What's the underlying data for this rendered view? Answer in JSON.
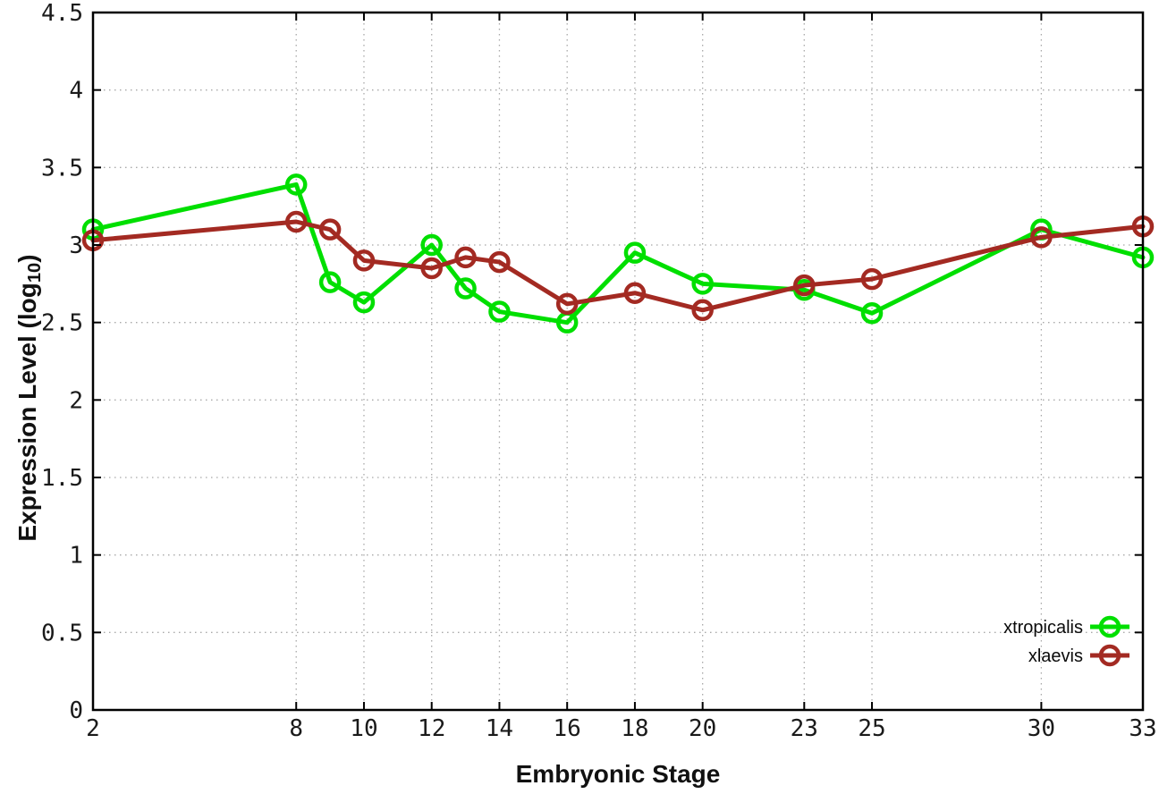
{
  "chart_data": {
    "type": "line",
    "title": "",
    "xlabel": "Embryonic Stage",
    "ylabel": "Expression Level (log10)",
    "ylabel_parts": {
      "main": "Expression Level (log",
      "sub": "10",
      "close": ")"
    },
    "xlim": [
      2,
      33
    ],
    "ylim": [
      0,
      4.5
    ],
    "grid": true,
    "legend_position": "bottom-right-inside",
    "marker": "open-circle",
    "xticks": [
      2,
      8,
      10,
      12,
      14,
      16,
      18,
      20,
      23,
      25,
      30,
      33
    ],
    "xtick_labels": [
      "2",
      "8",
      "10",
      "12",
      "14",
      "16",
      "18",
      "20",
      "23",
      "25",
      "30",
      "33"
    ],
    "yticks": [
      0,
      0.5,
      1,
      1.5,
      2,
      2.5,
      3,
      3.5,
      4,
      4.5
    ],
    "ytick_labels": [
      "0",
      "0.5",
      "1",
      "1.5",
      "2",
      "2.5",
      "3",
      "3.5",
      "4",
      "4.5"
    ],
    "x": [
      2,
      8,
      9,
      10,
      12,
      13,
      14,
      16,
      18,
      20,
      23,
      25,
      30,
      33
    ],
    "series": [
      {
        "name": "xtropicalis",
        "color": "#00df00",
        "values": [
          3.1,
          3.39,
          2.76,
          2.63,
          3.0,
          2.72,
          2.57,
          2.5,
          2.95,
          2.75,
          2.71,
          2.56,
          3.1,
          2.92
        ]
      },
      {
        "name": "xlaevis",
        "color": "#a32a22",
        "values": [
          3.03,
          3.15,
          3.1,
          2.9,
          2.85,
          2.92,
          2.89,
          2.62,
          2.69,
          2.58,
          2.74,
          2.78,
          3.05,
          3.12
        ]
      }
    ]
  },
  "colors": {
    "background": "#ffffff",
    "border": "#000000",
    "grid": "#a8a8a8",
    "tick_text": "#1a1a1a",
    "series_green": "#00df00",
    "series_red": "#a32a22"
  }
}
